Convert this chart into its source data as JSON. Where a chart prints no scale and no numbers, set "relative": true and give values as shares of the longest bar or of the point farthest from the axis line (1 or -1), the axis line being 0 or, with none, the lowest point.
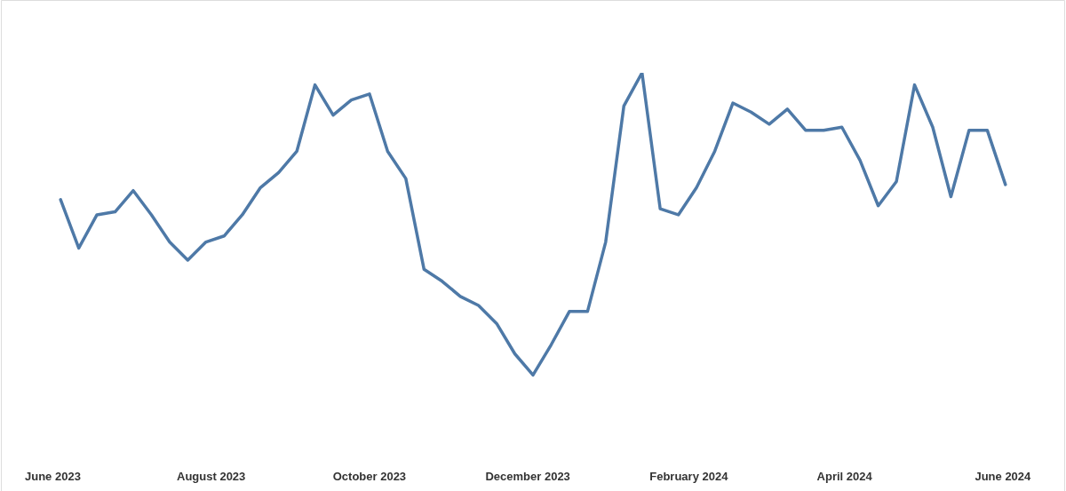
{
  "chart_data": {
    "type": "line",
    "relative": true,
    "marker": "none",
    "line_style": "solid",
    "grid": false,
    "legend": false,
    "x": [
      "2023-06-04",
      "2023-06-11",
      "2023-06-18",
      "2023-06-25",
      "2023-07-02",
      "2023-07-09",
      "2023-07-16",
      "2023-07-23",
      "2023-07-30",
      "2023-08-06",
      "2023-08-13",
      "2023-08-20",
      "2023-08-27",
      "2023-09-03",
      "2023-09-10",
      "2023-09-17",
      "2023-09-24",
      "2023-10-01",
      "2023-10-08",
      "2023-10-15",
      "2023-10-22",
      "2023-10-29",
      "2023-11-05",
      "2023-11-12",
      "2023-11-19",
      "2023-11-26",
      "2023-12-03",
      "2023-12-10",
      "2023-12-17",
      "2023-12-24",
      "2023-12-31",
      "2024-01-07",
      "2024-01-14",
      "2024-01-21",
      "2024-01-28",
      "2024-02-04",
      "2024-02-11",
      "2024-02-18",
      "2024-02-25",
      "2024-03-03",
      "2024-03-10",
      "2024-03-17",
      "2024-03-24",
      "2024-03-31",
      "2024-04-07",
      "2024-04-14",
      "2024-04-21",
      "2024-04-28",
      "2024-05-05",
      "2024-05-12",
      "2024-05-19",
      "2024-05-26",
      "2024-06-02"
    ],
    "xlim": [
      "2023-05-12",
      "2024-06-25"
    ],
    "xticks": [
      {
        "value": "2023-06-01",
        "label": "June 2023"
      },
      {
        "value": "2023-08-01",
        "label": "August 2023"
      },
      {
        "value": "2023-10-01",
        "label": "October 2023"
      },
      {
        "value": "2023-12-01",
        "label": "December 2023"
      },
      {
        "value": "2024-02-01",
        "label": "February 2024"
      },
      {
        "value": "2024-04-01",
        "label": "April 2024"
      },
      {
        "value": "2024-06-01",
        "label": "June 2024"
      }
    ],
    "series": [
      {
        "color": "#4e79a7",
        "values": [
          0.58,
          0.42,
          0.53,
          0.54,
          0.61,
          0.53,
          0.44,
          0.38,
          0.44,
          0.46,
          0.53,
          0.62,
          0.67,
          0.74,
          0.96,
          0.86,
          0.91,
          0.93,
          0.74,
          0.65,
          0.35,
          0.31,
          0.26,
          0.23,
          0.17,
          0.07,
          0,
          0.1,
          0.21,
          0.21,
          0.44,
          0.89,
          1,
          0.55,
          0.53,
          0.62,
          0.74,
          0.9,
          0.87,
          0.83,
          0.88,
          0.81,
          0.81,
          0.82,
          0.71,
          0.56,
          0.64,
          0.96,
          0.82,
          0.59,
          0.81,
          0.81,
          0.63
        ]
      }
    ]
  }
}
